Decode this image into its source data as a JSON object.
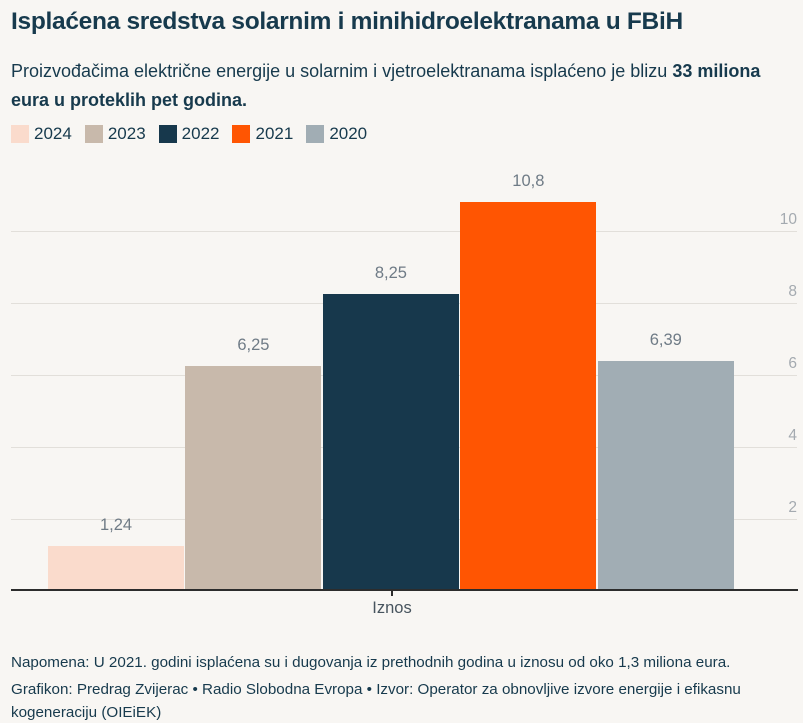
{
  "header": {
    "title": "Isplaćena sredstva solarnim i minihidroelektranama u FBiH",
    "subtitle_normal": "Proizvođačima električne energije u solarnim i vjetroelektranama isplaćeno je blizu ",
    "subtitle_bold_line1": "33 miliona",
    "subtitle_bold_line2": "eura u proteklih pet godina."
  },
  "chart_data": {
    "type": "bar",
    "title": "Isplaćena sredstva solarnim i minihidroelektranama u FBiH",
    "categories": [
      "Iznos"
    ],
    "series": [
      {
        "name": "2024",
        "value": 1.24,
        "label": "1,24",
        "color": "#fadbcc"
      },
      {
        "name": "2023",
        "value": 6.25,
        "label": "6,25",
        "color": "#c8b9ab"
      },
      {
        "name": "2022",
        "value": 8.25,
        "label": "8,25",
        "color": "#17384c"
      },
      {
        "name": "2021",
        "value": 10.8,
        "label": "10,8",
        "color": "#ff5502"
      },
      {
        "name": "2020",
        "value": 6.39,
        "label": "6,39",
        "color": "#a1adb4"
      }
    ],
    "xlabel": "Iznos",
    "ylabel": "",
    "ylim": [
      0,
      10.8
    ],
    "yticks": [
      2,
      4,
      6,
      8,
      10
    ],
    "grid": true,
    "legend_position": "top",
    "units": "miliona eura"
  },
  "footer": {
    "note": "Napomena: U 2021. godini isplaćena su i dugovanja iz prethodnih godina u iznosu od oko 1,3 miliona eura.",
    "credit": "Grafikon: Predrag Zvijerac • Radio Slobodna Evropa • Izvor: Operator za obnovljive izvore energije i efikasnu kogeneraciju (OIEiEK)"
  },
  "colors": {
    "background": "#f8f6f3",
    "text": "#173a4d",
    "value_label": "#6f7b86",
    "axis_tick_label": "#a4aab0",
    "gridline": "#e2dfda",
    "baseline": "#2c2c2c",
    "accent_2021": "#ff5502"
  }
}
